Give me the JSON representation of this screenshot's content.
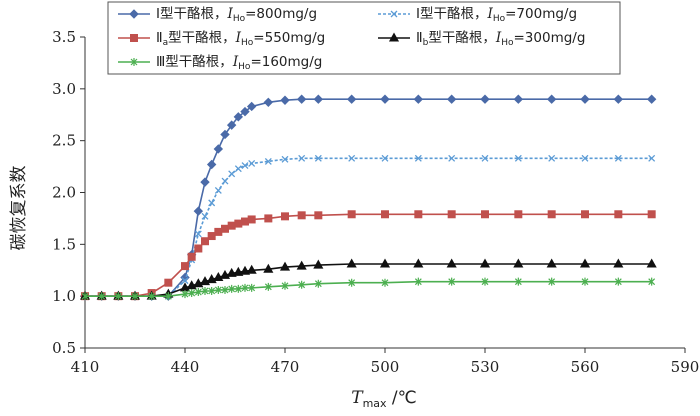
{
  "chart_data": {
    "type": "line",
    "title": "",
    "xlabel": {
      "main": "T",
      "sub": "max",
      "unit": "/℃"
    },
    "ylabel": "碳恢复系数",
    "xlim": [
      410,
      590
    ],
    "ylim": [
      0.5,
      3.5
    ],
    "xticks": [
      410,
      440,
      470,
      500,
      530,
      560,
      590
    ],
    "xtick_labels": [
      "410",
      "440",
      "470",
      "500",
      "530",
      "560",
      "590"
    ],
    "yticks": [
      0.5,
      1.0,
      1.5,
      2.0,
      2.5,
      3.0,
      3.5
    ],
    "ytick_labels": [
      "0.5",
      "1.0",
      "1.5",
      "2.0",
      "2.5",
      "3.0",
      "3.5"
    ],
    "grid": false,
    "legend_position": "top",
    "series": [
      {
        "name": "Ⅰ型干酪根",
        "label_prefix": "Ⅰ型干酪根，",
        "label_main": "I",
        "label_sub": "Ho",
        "label_suffix": "=800mg/g",
        "color": "#4a6aa8",
        "marker": "diamond",
        "dashed": false,
        "x": [
          410,
          415,
          420,
          425,
          430,
          435,
          440,
          442,
          444,
          446,
          448,
          450,
          452,
          454,
          456,
          458,
          460,
          465,
          470,
          475,
          480,
          490,
          500,
          510,
          520,
          530,
          540,
          550,
          560,
          570,
          580
        ],
        "values": [
          1.0,
          1.0,
          1.0,
          1.0,
          1.0,
          1.0,
          1.18,
          1.4,
          1.82,
          2.1,
          2.27,
          2.42,
          2.56,
          2.65,
          2.73,
          2.78,
          2.83,
          2.87,
          2.89,
          2.9,
          2.9,
          2.9,
          2.9,
          2.9,
          2.9,
          2.9,
          2.9,
          2.9,
          2.9,
          2.9,
          2.9
        ]
      },
      {
        "name": "Ⅰ型干酪根",
        "label_prefix": "Ⅰ型干酪根，",
        "label_main": "I",
        "label_sub": "Ho",
        "label_suffix": "=700mg/g",
        "color": "#5b9bd5",
        "marker": "x",
        "dashed": true,
        "x": [
          410,
          415,
          420,
          425,
          430,
          435,
          440,
          442,
          444,
          446,
          448,
          450,
          452,
          454,
          456,
          458,
          460,
          465,
          470,
          475,
          480,
          490,
          500,
          510,
          520,
          530,
          540,
          550,
          560,
          570,
          580
        ],
        "values": [
          1.0,
          1.0,
          1.0,
          1.0,
          1.0,
          1.0,
          1.15,
          1.35,
          1.6,
          1.77,
          1.9,
          2.02,
          2.11,
          2.18,
          2.23,
          2.26,
          2.28,
          2.3,
          2.32,
          2.33,
          2.33,
          2.33,
          2.33,
          2.33,
          2.33,
          2.33,
          2.33,
          2.33,
          2.33,
          2.33,
          2.33
        ]
      },
      {
        "name": "Ⅱa型干酪根",
        "label_prefix": "Ⅱ",
        "label_prefix_sub": "a",
        "label_prefix_after": "型干酪根，",
        "label_main": "I",
        "label_sub": "Ho",
        "label_suffix": "=550mg/g",
        "color": "#c0504d",
        "marker": "square",
        "dashed": false,
        "x": [
          410,
          415,
          420,
          425,
          430,
          435,
          440,
          442,
          444,
          446,
          448,
          450,
          452,
          454,
          456,
          458,
          460,
          465,
          470,
          475,
          480,
          490,
          500,
          510,
          520,
          530,
          540,
          550,
          560,
          570,
          580
        ],
        "values": [
          1.0,
          1.0,
          1.0,
          1.0,
          1.03,
          1.13,
          1.29,
          1.38,
          1.46,
          1.53,
          1.58,
          1.62,
          1.65,
          1.68,
          1.7,
          1.72,
          1.74,
          1.75,
          1.77,
          1.78,
          1.78,
          1.79,
          1.79,
          1.79,
          1.79,
          1.79,
          1.79,
          1.79,
          1.79,
          1.79,
          1.79
        ]
      },
      {
        "name": "Ⅱb型干酪根",
        "label_prefix": "Ⅱ",
        "label_prefix_sub": "b",
        "label_prefix_after": "型干酪根，",
        "label_main": "I",
        "label_sub": "Ho",
        "label_suffix": "=300mg/g",
        "color": "#111111",
        "marker": "triangle",
        "dashed": false,
        "x": [
          410,
          415,
          420,
          425,
          430,
          435,
          440,
          442,
          444,
          446,
          448,
          450,
          452,
          454,
          456,
          458,
          460,
          465,
          470,
          475,
          480,
          490,
          500,
          510,
          520,
          530,
          540,
          550,
          560,
          570,
          580
        ],
        "values": [
          1.0,
          1.0,
          1.0,
          1.0,
          1.0,
          1.02,
          1.08,
          1.1,
          1.12,
          1.14,
          1.16,
          1.18,
          1.2,
          1.22,
          1.23,
          1.24,
          1.25,
          1.26,
          1.28,
          1.29,
          1.3,
          1.31,
          1.31,
          1.31,
          1.31,
          1.31,
          1.31,
          1.31,
          1.31,
          1.31,
          1.31
        ]
      },
      {
        "name": "Ⅲ型干酪根",
        "label_prefix": "Ⅲ型干酪根，",
        "label_main": "I",
        "label_sub": "Ho",
        "label_suffix": "=160mg/g",
        "color": "#4caf50",
        "marker": "star",
        "dashed": false,
        "x": [
          410,
          415,
          420,
          425,
          430,
          435,
          440,
          442,
          444,
          446,
          448,
          450,
          452,
          454,
          456,
          458,
          460,
          465,
          470,
          475,
          480,
          490,
          500,
          510,
          520,
          530,
          540,
          550,
          560,
          570,
          580
        ],
        "values": [
          1.0,
          1.0,
          1.0,
          1.0,
          1.0,
          1.0,
          1.02,
          1.03,
          1.04,
          1.05,
          1.05,
          1.06,
          1.06,
          1.07,
          1.07,
          1.08,
          1.08,
          1.09,
          1.1,
          1.11,
          1.12,
          1.13,
          1.13,
          1.14,
          1.14,
          1.14,
          1.14,
          1.14,
          1.14,
          1.14,
          1.14
        ]
      }
    ]
  }
}
